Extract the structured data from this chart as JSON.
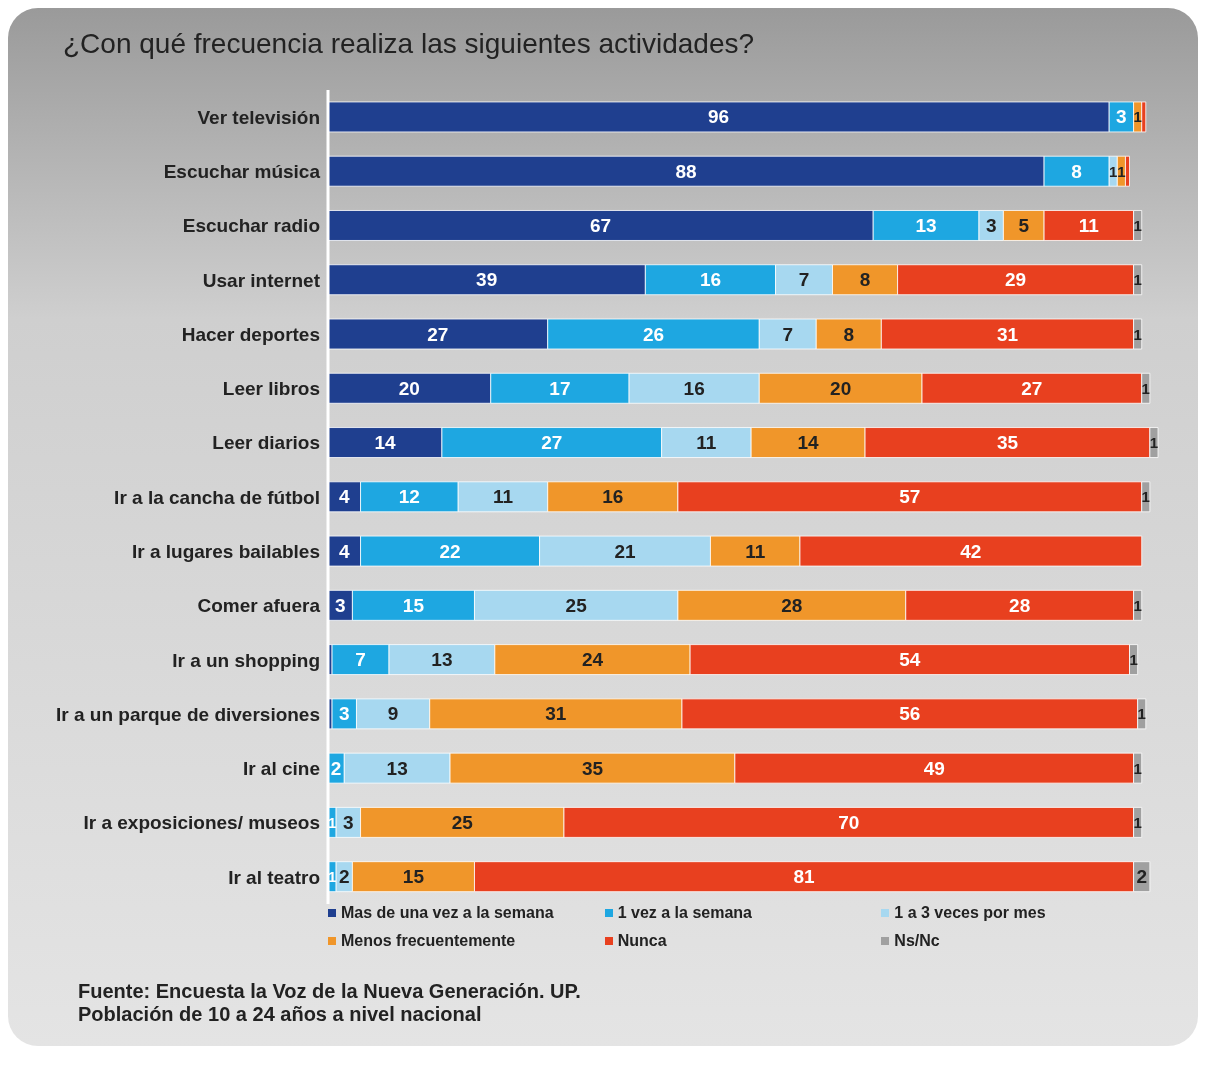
{
  "chart_data": {
    "type": "bar",
    "orientation": "horizontal",
    "stacked": true,
    "title": "¿Con qué frecuencia realiza las siguientes actividades?",
    "categories": [
      "Ver televisión",
      "Escuchar música",
      "Escuchar radio",
      "Usar internet",
      "Hacer deportes",
      "Leer libros",
      "Leer diarios",
      "Ir a la cancha de fútbol",
      "Ir a lugares bailables",
      "Comer afuera",
      "Ir a un shopping",
      "Ir a un parque de diversiones",
      "Ir al cine",
      "Ir a exposiciones/ museos",
      "Ir al teatro"
    ],
    "series": [
      {
        "name": "Mas de una vez a la semana",
        "color": "#1f3f8f",
        "values": [
          96,
          88,
          67,
          39,
          27,
          20,
          14,
          4,
          4,
          3,
          0.5,
          0.5,
          null,
          null,
          null
        ],
        "value_labels": [
          "96",
          "88",
          "67",
          "39",
          "27",
          "20",
          "14",
          "4",
          "4",
          "3",
          null,
          null,
          null,
          null,
          null
        ]
      },
      {
        "name": "1 vez a la semana",
        "color": "#1ea7e1",
        "values": [
          3,
          8,
          13,
          16,
          26,
          17,
          27,
          12,
          22,
          15,
          7,
          3,
          2,
          1,
          1
        ],
        "value_labels": [
          "3",
          "8",
          "13",
          "16",
          "26",
          "17",
          "27",
          "12",
          "22",
          "15",
          "7",
          "3",
          "2",
          "1",
          "1"
        ]
      },
      {
        "name": "1 a 3 veces por mes",
        "color": "#a7d8f0",
        "values": [
          null,
          1,
          3,
          7,
          7,
          16,
          11,
          11,
          21,
          25,
          13,
          9,
          13,
          3,
          2
        ],
        "value_labels": [
          null,
          "1",
          "3",
          "7",
          "7",
          "16",
          "11",
          "11",
          "21",
          "25",
          "13",
          "9",
          "13",
          "3",
          "2"
        ]
      },
      {
        "name": "Menos frecuentemente",
        "color": "#f0962a",
        "values": [
          1,
          1,
          5,
          8,
          8,
          20,
          14,
          16,
          11,
          28,
          24,
          31,
          35,
          25,
          15
        ],
        "value_labels": [
          "1",
          "1",
          "5",
          "8",
          "8",
          "20",
          "14",
          "16",
          "11",
          "28",
          "24",
          "31",
          "35",
          "25",
          "15"
        ]
      },
      {
        "name": "Nunca",
        "color": "#e8401f",
        "values": [
          0.5,
          0.5,
          11,
          29,
          31,
          27,
          35,
          57,
          42,
          28,
          54,
          56,
          49,
          70,
          81
        ],
        "value_labels": [
          null,
          null,
          "11",
          "29",
          "31",
          "27",
          "35",
          "57",
          "42",
          "28",
          "54",
          "56",
          "49",
          "70",
          "81"
        ]
      },
      {
        "name": "Ns/Nc",
        "color": "#a0a0a0",
        "values": [
          null,
          null,
          1,
          1,
          1,
          1,
          1,
          1,
          null,
          1,
          1,
          1,
          1,
          1,
          2
        ],
        "value_labels": [
          null,
          null,
          "1",
          "1",
          "1",
          "1",
          "1",
          "1",
          null,
          "1",
          "1",
          "1",
          "1",
          "1",
          "2"
        ]
      }
    ],
    "legend": "bottom",
    "annotations": [
      "Fuente: Encuesta la Voz de la Nueva Generación. UP.",
      "Población de 10 a 24 años a nivel nacional"
    ]
  }
}
